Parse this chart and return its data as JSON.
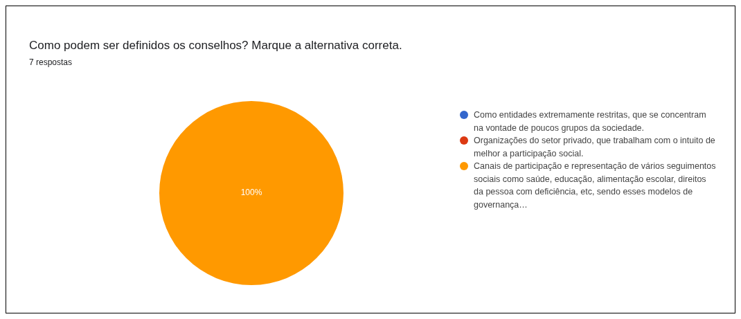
{
  "chart_data": {
    "type": "pie",
    "title": "Como podem ser definidos os conselhos? Marque a alternativa correta.",
    "subtitle": "7 respostas",
    "categories": [
      "Como entidades extremamente restritas, que se concentram na vontade de poucos grupos da sociedade.",
      "Organizações do setor privado, que trabalham com o intuito de melhor a participação social.",
      "Canais de participação e representação de vários seguimentos sociais como saúde, educação, alimentação escolar, direitos da pessoa com deficiência, etc, sendo esses modelos de governança…"
    ],
    "values": [
      0,
      0,
      100
    ],
    "colors": [
      "#3366cc",
      "#dc3912",
      "#ff9900"
    ],
    "value_labels": [
      null,
      null,
      "100%"
    ],
    "legend": "right"
  }
}
